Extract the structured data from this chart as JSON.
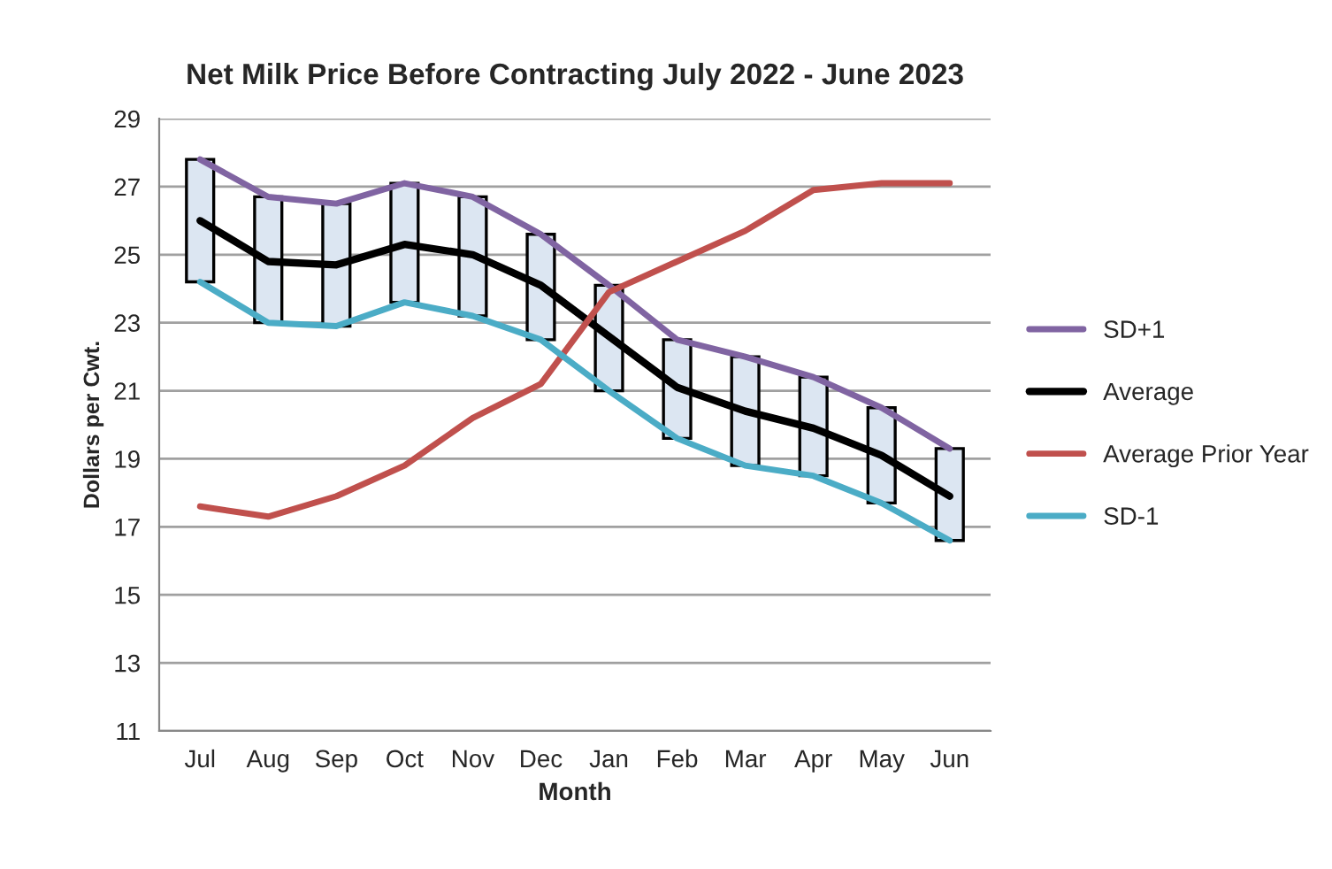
{
  "chart_data": {
    "type": "line",
    "title": "Net Milk Price Before Contracting July 2022 - June 2023",
    "xlabel": "Month",
    "ylabel": "Dollars per Cwt.",
    "categories": [
      "Jul",
      "Aug",
      "Sep",
      "Oct",
      "Nov",
      "Dec",
      "Jan",
      "Feb",
      "Mar",
      "Apr",
      "May",
      "Jun"
    ],
    "series": [
      {
        "type": "bar",
        "color": "#dce6f2",
        "base": [
          24.2,
          23.0,
          22.9,
          23.6,
          23.2,
          22.5,
          21.0,
          19.6,
          18.8,
          18.5,
          17.7,
          16.6
        ],
        "values": [
          3.6,
          3.7,
          3.6,
          3.5,
          3.5,
          3.1,
          3.1,
          2.9,
          3.2,
          2.9,
          2.8,
          2.7
        ]
      },
      {
        "name": "SD+1",
        "color": "#8064a2",
        "values": [
          27.8,
          26.7,
          26.5,
          27.1,
          26.7,
          25.6,
          24.1,
          22.5,
          22.0,
          21.4,
          20.5,
          19.3
        ]
      },
      {
        "name": "Average",
        "color": "#000000",
        "values": [
          26.0,
          24.8,
          24.7,
          25.3,
          25.0,
          24.1,
          22.6,
          21.1,
          20.4,
          19.9,
          19.1,
          17.9
        ]
      },
      {
        "name": "Average Prior Year",
        "color": "#c0504d",
        "values": [
          17.6,
          17.3,
          17.9,
          18.8,
          20.2,
          21.2,
          23.9,
          24.8,
          25.7,
          26.9,
          27.1,
          27.1
        ]
      },
      {
        "name": "SD-1",
        "color": "#4bacc6",
        "values": [
          24.2,
          23.0,
          22.9,
          23.6,
          23.2,
          22.5,
          21.0,
          19.6,
          18.8,
          18.5,
          17.7,
          16.6
        ]
      }
    ],
    "ylim": [
      11,
      29
    ],
    "yticks": [
      11,
      13,
      15,
      17,
      19,
      21,
      23,
      25,
      27,
      29
    ],
    "grid": "y",
    "legend": "right",
    "marker": "none",
    "line_style": "solid"
  }
}
